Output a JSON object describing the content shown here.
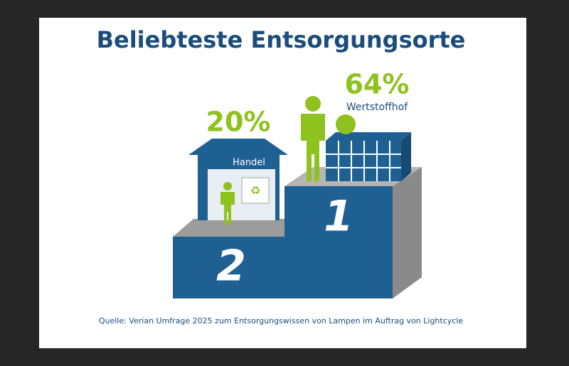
{
  "title": "Beliebteste Entsorgungsorte",
  "places": [
    {
      "rank": "2",
      "percent": "20%",
      "label": "Handel"
    },
    {
      "rank": "1",
      "percent": "64%",
      "label": "Wertstoffhof"
    }
  ],
  "source": "Quelle: Verian Umfrage 2025 zum Entsorgungswissen von Lampen im Auftrag von Lightcycle"
}
